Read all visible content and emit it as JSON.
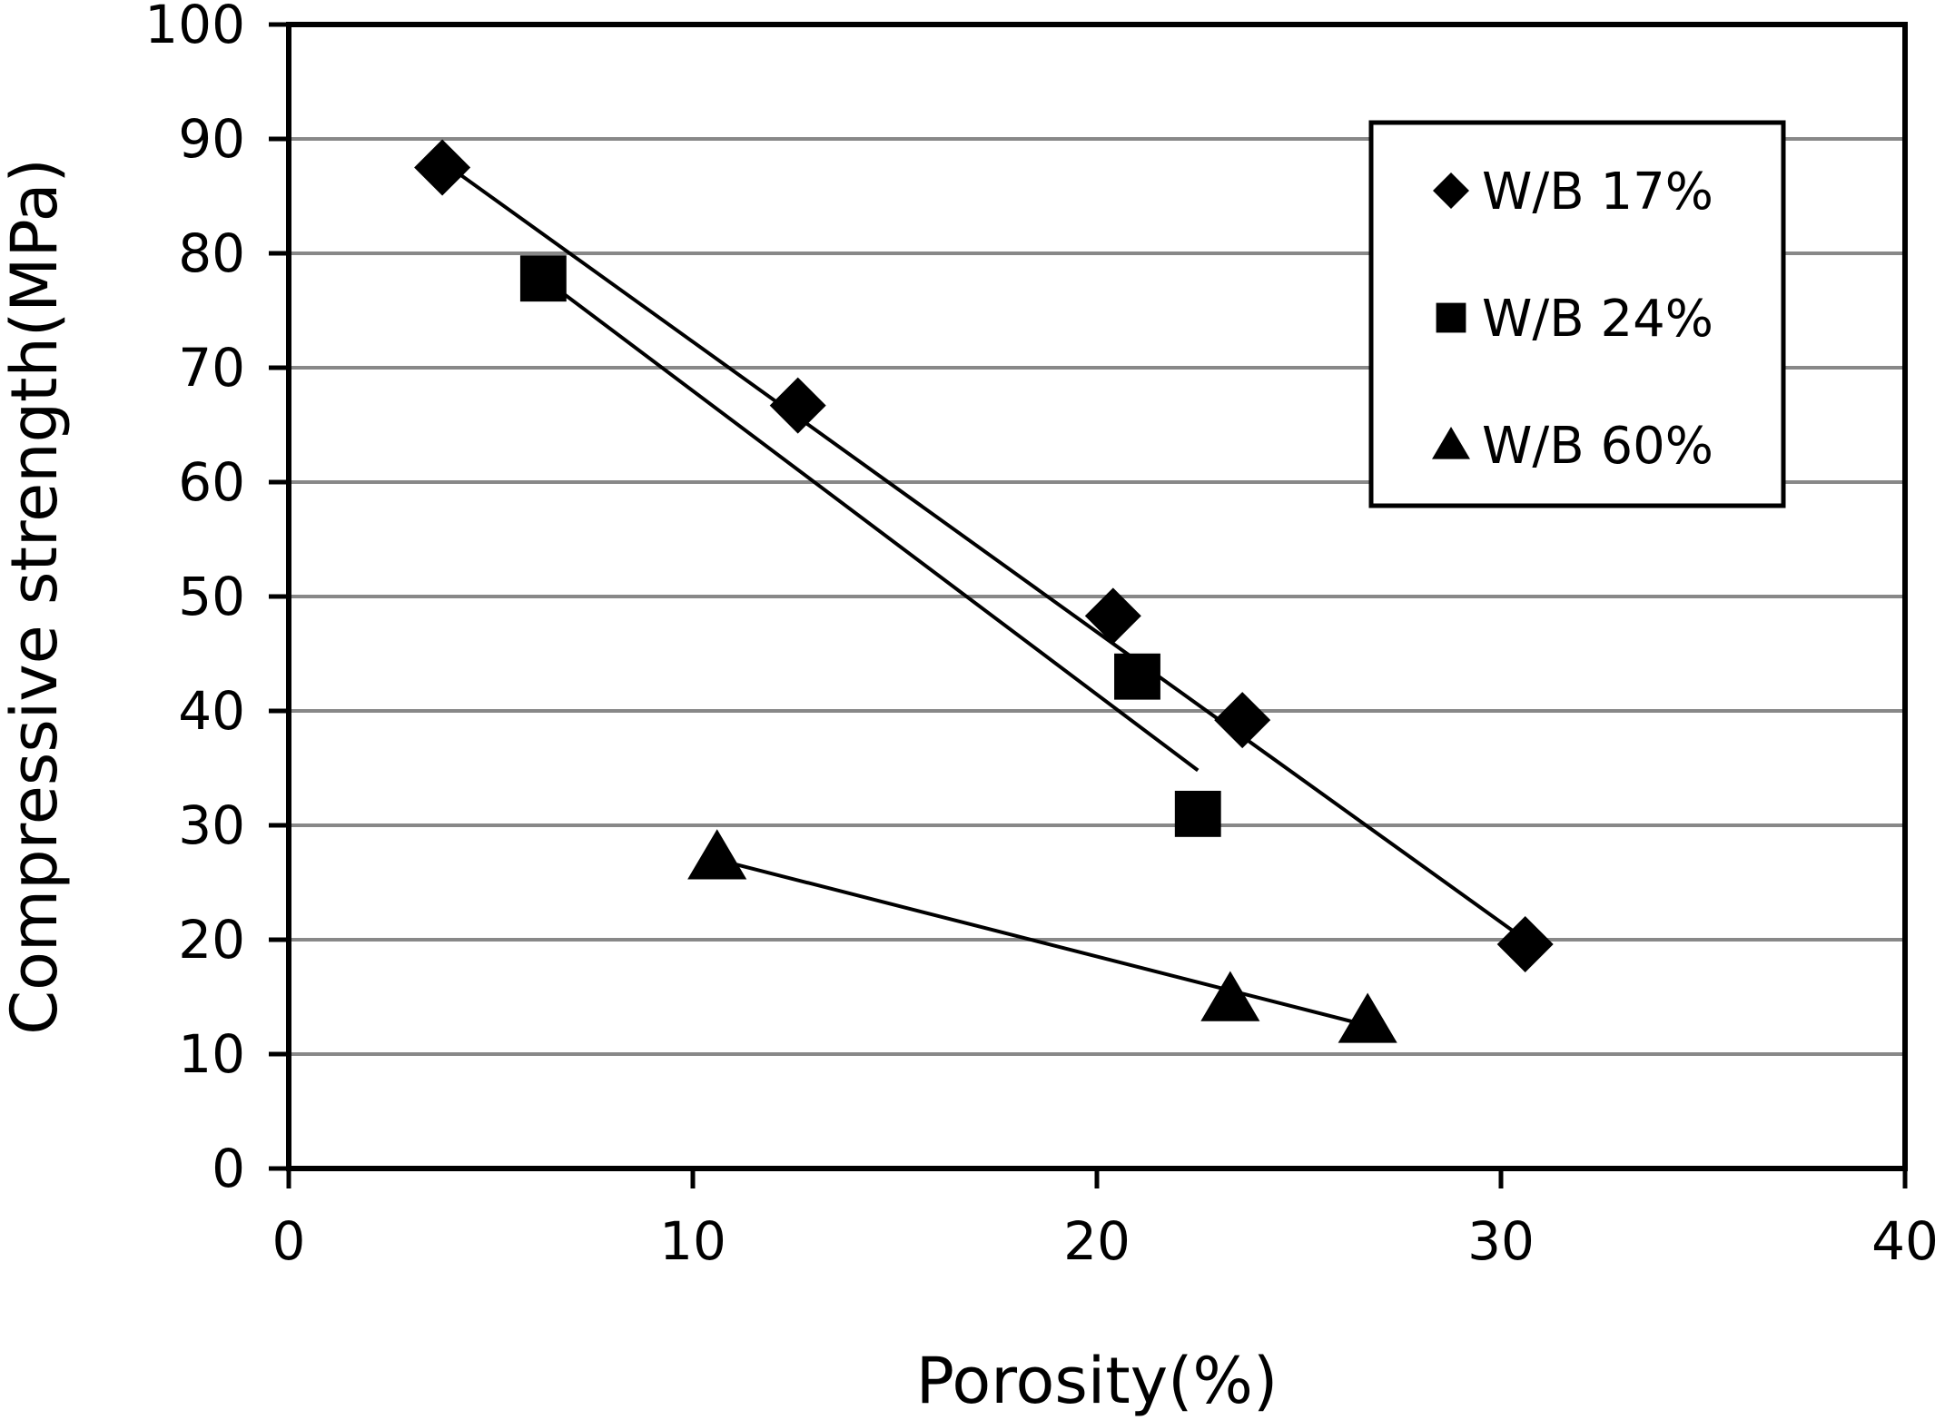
{
  "chart_data": {
    "type": "scatter",
    "title": "",
    "xlabel": "Porosity(%)",
    "ylabel": "Compressive strength(MPa)",
    "xlim": [
      0,
      40
    ],
    "ylim": [
      0,
      100
    ],
    "xticks": [
      0,
      10,
      20,
      30,
      40
    ],
    "yticks": [
      0,
      10,
      20,
      30,
      40,
      50,
      60,
      70,
      80,
      90,
      100
    ],
    "grid": "horizontal",
    "legend_position": "top-right",
    "series": [
      {
        "name": "W/B 17%",
        "marker": "diamond",
        "points": [
          [
            3.8,
            87.5
          ],
          [
            12.6,
            66.7
          ],
          [
            20.4,
            48.3
          ],
          [
            23.6,
            39.2
          ],
          [
            30.6,
            19.6
          ]
        ],
        "trendline": [
          [
            3.8,
            88
          ],
          [
            30.6,
            20
          ]
        ]
      },
      {
        "name": "W/B 24%",
        "marker": "square",
        "points": [
          [
            6.3,
            77.8
          ],
          [
            21.0,
            43.0
          ],
          [
            22.5,
            31.0
          ]
        ],
        "trendline": [
          [
            6.3,
            77.8
          ],
          [
            22.5,
            34.8
          ]
        ]
      },
      {
        "name": "W/B 60%",
        "marker": "triangle",
        "points": [
          [
            10.6,
            27.2
          ],
          [
            23.3,
            14.8
          ],
          [
            26.7,
            12.9
          ]
        ],
        "trendline": [
          [
            10.6,
            27
          ],
          [
            26.7,
            12.5
          ]
        ]
      }
    ]
  }
}
